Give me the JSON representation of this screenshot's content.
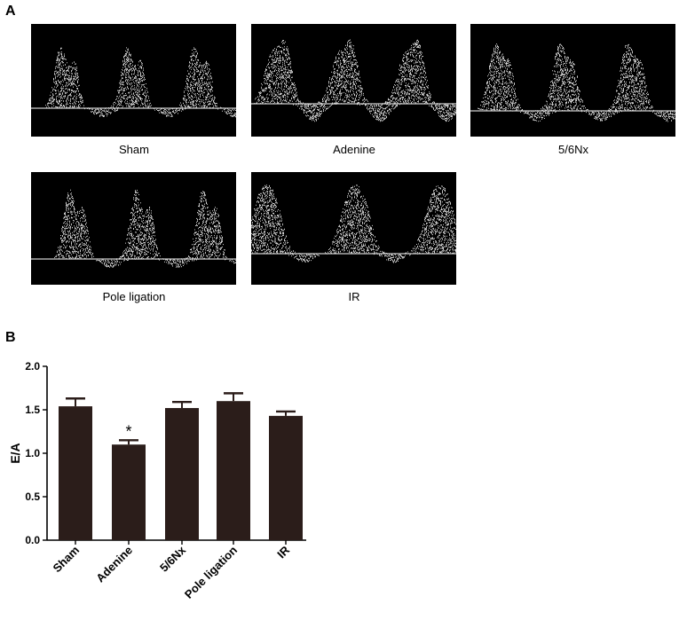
{
  "panel_a": {
    "letter": "A",
    "images": [
      {
        "label": "Sham",
        "pattern": "sham"
      },
      {
        "label": "Adenine",
        "pattern": "adenine"
      },
      {
        "label": "5/6Nx",
        "pattern": "nx"
      },
      {
        "label": "Pole ligation",
        "pattern": "pole"
      },
      {
        "label": "IR",
        "pattern": "ir"
      }
    ]
  },
  "panel_b": {
    "letter": "B"
  },
  "chart_data": {
    "type": "bar",
    "categories": [
      "Sham",
      "Adenine",
      "5/6Nx",
      "Pole ligation",
      "IR"
    ],
    "values": [
      1.54,
      1.1,
      1.52,
      1.6,
      1.43
    ],
    "errors": [
      0.09,
      0.05,
      0.07,
      0.09,
      0.05
    ],
    "significance": [
      "",
      "*",
      "",
      "",
      ""
    ],
    "ylabel": "E/A",
    "xlabel": "",
    "ylim": [
      0,
      2.0
    ],
    "yticks": [
      "0.0",
      "0.5",
      "1.0",
      "1.5",
      "2.0"
    ],
    "bar_color": "#2b1d1a",
    "grid": false
  }
}
